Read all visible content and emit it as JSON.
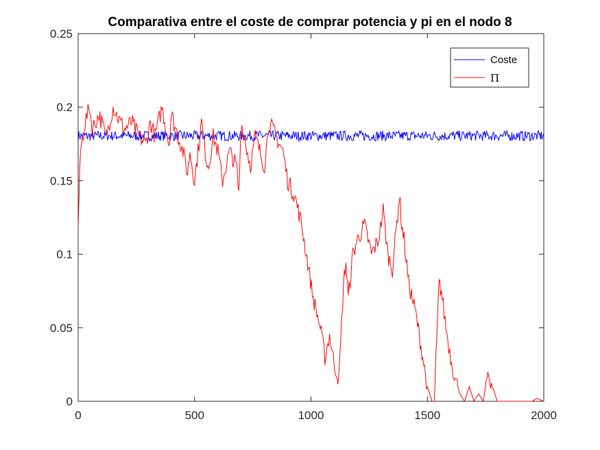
{
  "chart_data": {
    "type": "line",
    "title": "Comparativa entre el coste de comprar potencia y pi en el nodo 8",
    "xlabel": "",
    "ylabel": "",
    "xlim": [
      0,
      2000
    ],
    "ylim": [
      0,
      0.25
    ],
    "x_ticks": [
      0,
      500,
      1000,
      1500,
      2000
    ],
    "y_ticks": [
      0,
      0.05,
      0.1,
      0.15,
      0.2,
      0.25
    ],
    "x_tick_labels": [
      "0",
      "500",
      "1000",
      "1500",
      "2000"
    ],
    "y_tick_labels": [
      "0",
      "0.05",
      "0.1",
      "0.15",
      "0.2",
      "0.25"
    ],
    "grid": false,
    "legend_position": "top-right",
    "series": [
      {
        "name": "Coste",
        "color": "#0000ff",
        "x": [
          0,
          2000
        ],
        "y": [
          0.18,
          0.18
        ],
        "noise_band": [
          0.177,
          0.184
        ]
      },
      {
        "name": "Π",
        "color": "#ff0000",
        "x": [
          0,
          10,
          30,
          50,
          60,
          90,
          120,
          150,
          180,
          200,
          230,
          260,
          290,
          310,
          330,
          360,
          390,
          400,
          420,
          450,
          470,
          480,
          500,
          530,
          550,
          560,
          580,
          600,
          620,
          650,
          680,
          690,
          700,
          720,
          740,
          760,
          780,
          800,
          820,
          850,
          880,
          900,
          930,
          960,
          990,
          1010,
          1040,
          1060,
          1080,
          1100,
          1120,
          1140,
          1150,
          1160,
          1180,
          1200,
          1230,
          1260,
          1290,
          1310,
          1330,
          1350,
          1380,
          1390,
          1400,
          1420,
          1450,
          1480,
          1500,
          1520,
          1530,
          1540,
          1550,
          1560,
          1580,
          1600,
          1620,
          1640,
          1660,
          1680,
          1700,
          1720,
          1740,
          1760,
          1790,
          1800,
          1820,
          1850,
          1900,
          1950,
          1970,
          2000
        ],
        "y": [
          0.12,
          0.17,
          0.19,
          0.2,
          0.185,
          0.195,
          0.18,
          0.2,
          0.19,
          0.185,
          0.19,
          0.18,
          0.175,
          0.19,
          0.18,
          0.2,
          0.175,
          0.195,
          0.185,
          0.17,
          0.155,
          0.17,
          0.15,
          0.19,
          0.165,
          0.16,
          0.18,
          0.17,
          0.15,
          0.17,
          0.16,
          0.14,
          0.19,
          0.175,
          0.16,
          0.18,
          0.17,
          0.16,
          0.19,
          0.18,
          0.17,
          0.15,
          0.14,
          0.12,
          0.09,
          0.07,
          0.05,
          0.03,
          0.045,
          0.025,
          0.015,
          0.08,
          0.095,
          0.07,
          0.1,
          0.11,
          0.12,
          0.1,
          0.11,
          0.13,
          0.1,
          0.09,
          0.14,
          0.12,
          0.11,
          0.08,
          0.06,
          0.03,
          0.01,
          0.0,
          0.0,
          0.04,
          0.08,
          0.075,
          0.05,
          0.03,
          0.015,
          0.005,
          0.0,
          0.01,
          0.0,
          0.005,
          0.0,
          0.02,
          0.005,
          0.0,
          0.0,
          0.0,
          0.0,
          0.0,
          0.002,
          0.0
        ]
      }
    ]
  }
}
